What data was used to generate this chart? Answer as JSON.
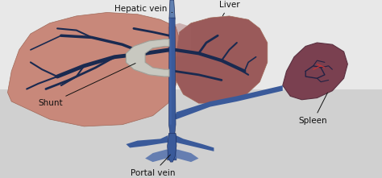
{
  "bg_color": "#d8d8d8",
  "bg_top": "#e0e0e0",
  "liver_left_color": "#c8887a",
  "liver_right_color": "#9a5a5a",
  "liver_edge": "#a06858",
  "spleen_color": "#7a4050",
  "spleen_edge": "#5a3040",
  "vein_blue": "#3a5a9a",
  "vein_blue2": "#4a70b8",
  "vein_dark": "#1a2a5a",
  "shunt_color": "#c8c8c0",
  "shunt_edge": "#a0a098",
  "hepatic_top_color": "#6080b0",
  "text_color": "#111111",
  "branch_color": "#1a2a50",
  "labels": {
    "hepatic_vein": "Hepatic vein",
    "liver": "Liver",
    "shunt": "Shunt",
    "portal_vein": "Portal vein",
    "spleen": "Spleen"
  },
  "figsize": [
    4.74,
    2.21
  ],
  "dpi": 100
}
